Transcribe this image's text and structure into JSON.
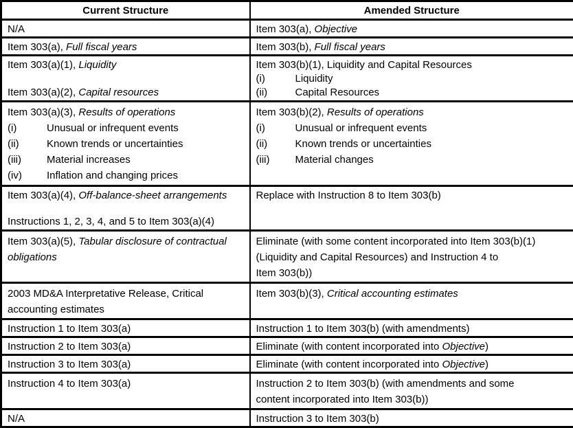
{
  "table": {
    "headers": [
      "Current Structure",
      "Amended Structure"
    ],
    "rows": [
      {
        "current": {
          "lines": [
            {
              "segments": [
                {
                  "text": "N/A",
                  "italic": false
                }
              ]
            }
          ]
        },
        "amended": {
          "lines": [
            {
              "segments": [
                {
                  "text": "Item 303(a), ",
                  "italic": false
                },
                {
                  "text": "Objective",
                  "italic": true
                }
              ]
            }
          ]
        }
      },
      {
        "current": {
          "lines": [
            {
              "segments": [
                {
                  "text": "Item 303(a), ",
                  "italic": false
                },
                {
                  "text": "Full fiscal years",
                  "italic": true
                }
              ]
            }
          ]
        },
        "amended": {
          "lines": [
            {
              "segments": [
                {
                  "text": "Item 303(b), ",
                  "italic": false
                },
                {
                  "text": "Full fiscal years",
                  "italic": true
                }
              ]
            }
          ]
        }
      },
      {
        "current": {
          "lines": [
            {
              "segments": [
                {
                  "text": "Item 303(a)(1), ",
                  "italic": false
                },
                {
                  "text": "Liquidity",
                  "italic": true
                }
              ]
            },
            {
              "blank": true
            },
            {
              "segments": [
                {
                  "text": "Item 303(a)(2), ",
                  "italic": false
                },
                {
                  "text": "Capital resources",
                  "italic": true
                }
              ]
            }
          ]
        },
        "amended": {
          "lines": [
            {
              "segments": [
                {
                  "text": "Item 303(b)(1), Liquidity and Capital Resources",
                  "italic": false
                }
              ]
            },
            {
              "marker": "(i)",
              "segments": [
                {
                  "text": "Liquidity",
                  "italic": false
                }
              ]
            },
            {
              "marker": "(ii)",
              "segments": [
                {
                  "text": "Capital Resources",
                  "italic": false
                }
              ]
            }
          ]
        }
      },
      {
        "current": {
          "lines": [
            {
              "segments": [
                {
                  "text": "Item 303(a)(3), ",
                  "italic": false
                },
                {
                  "text": "Results of operations",
                  "italic": true
                }
              ]
            },
            {
              "marker": "(i)",
              "segments": [
                {
                  "text": "Unusual or infrequent events",
                  "italic": false
                }
              ]
            },
            {
              "marker": "(ii)",
              "segments": [
                {
                  "text": "Known trends or uncertainties",
                  "italic": false
                }
              ]
            },
            {
              "marker": "(iii)",
              "segments": [
                {
                  "text": "Material increases",
                  "italic": false
                }
              ]
            },
            {
              "marker": "(iv)",
              "segments": [
                {
                  "text": "Inflation and changing prices",
                  "italic": false
                }
              ]
            }
          ]
        },
        "amended": {
          "lines": [
            {
              "segments": [
                {
                  "text": "Item 303(b)(2), ",
                  "italic": false
                },
                {
                  "text": "Results of operations",
                  "italic": true
                }
              ]
            },
            {
              "marker": "(i)",
              "segments": [
                {
                  "text": "Unusual or infrequent events",
                  "italic": false
                }
              ]
            },
            {
              "marker": "(ii)",
              "segments": [
                {
                  "text": "Known trends or uncertainties",
                  "italic": false
                }
              ]
            },
            {
              "marker": "(iii)",
              "segments": [
                {
                  "text": "Material changes",
                  "italic": false
                }
              ]
            }
          ]
        }
      },
      {
        "current": {
          "lines": [
            {
              "segments": [
                {
                  "text": "Item 303(a)(4), ",
                  "italic": false
                },
                {
                  "text": "Off-balance-sheet arrangements",
                  "italic": true
                }
              ]
            },
            {
              "blank": true
            },
            {
              "segments": [
                {
                  "text": "Instructions 1, 2, 3, 4, and 5 to Item 303(a)(4)",
                  "italic": false
                }
              ]
            }
          ]
        },
        "amended": {
          "lines": [
            {
              "segments": [
                {
                  "text": "Replace with Instruction 8 to Item 303(b)",
                  "italic": false
                }
              ]
            }
          ]
        }
      },
      {
        "current": {
          "lines": [
            {
              "segments": [
                {
                  "text": "Item 303(a)(5), ",
                  "italic": false
                },
                {
                  "text": "Tabular disclosure of contractual",
                  "italic": true
                }
              ]
            },
            {
              "segments": [
                {
                  "text": "obligations",
                  "italic": true
                }
              ]
            }
          ]
        },
        "amended": {
          "lines": [
            {
              "segments": [
                {
                  "text": "Eliminate (with some content incorporated into Item 303(b)(1)",
                  "italic": false
                }
              ]
            },
            {
              "segments": [
                {
                  "text": "(Liquidity and Capital Resources) and Instruction 4 to",
                  "italic": false
                }
              ]
            },
            {
              "segments": [
                {
                  "text": "Item 303(b))",
                  "italic": false
                }
              ]
            }
          ]
        }
      },
      {
        "current": {
          "lines": [
            {
              "segments": [
                {
                  "text": "2003 MD&A Interpretative Release, Critical",
                  "italic": false
                }
              ]
            },
            {
              "segments": [
                {
                  "text": "accounting estimates",
                  "italic": false
                }
              ]
            }
          ]
        },
        "amended": {
          "lines": [
            {
              "segments": [
                {
                  "text": "Item 303(b)(3), ",
                  "italic": false
                },
                {
                  "text": "Critical accounting estimates",
                  "italic": true
                }
              ]
            }
          ]
        }
      },
      {
        "current": {
          "lines": [
            {
              "segments": [
                {
                  "text": "Instruction 1 to Item 303(a)",
                  "italic": false
                }
              ]
            }
          ]
        },
        "amended": {
          "lines": [
            {
              "segments": [
                {
                  "text": "Instruction 1 to Item 303(b) (with amendments)",
                  "italic": false
                }
              ]
            }
          ]
        }
      },
      {
        "current": {
          "lines": [
            {
              "segments": [
                {
                  "text": "Instruction 2 to Item 303(a)",
                  "italic": false
                }
              ]
            }
          ]
        },
        "amended": {
          "lines": [
            {
              "segments": [
                {
                  "text": "Eliminate (with content incorporated into ",
                  "italic": false
                },
                {
                  "text": "Objective",
                  "italic": true
                },
                {
                  "text": ")",
                  "italic": false
                }
              ]
            }
          ]
        }
      },
      {
        "current": {
          "lines": [
            {
              "segments": [
                {
                  "text": "Instruction 3 to Item 303(a)",
                  "italic": false
                }
              ]
            }
          ]
        },
        "amended": {
          "lines": [
            {
              "segments": [
                {
                  "text": "Eliminate (with content incorporated into ",
                  "italic": false
                },
                {
                  "text": "Objective",
                  "italic": true
                },
                {
                  "text": ")",
                  "italic": false
                }
              ]
            }
          ]
        }
      },
      {
        "current": {
          "lines": [
            {
              "segments": [
                {
                  "text": "Instruction 4 to Item 303(a)",
                  "italic": false
                }
              ]
            }
          ]
        },
        "amended": {
          "lines": [
            {
              "segments": [
                {
                  "text": "Instruction 2 to Item 303(b) (with amendments and some",
                  "italic": false
                }
              ]
            },
            {
              "segments": [
                {
                  "text": "content incorporated into Item 303(b))",
                  "italic": false
                }
              ]
            }
          ]
        }
      },
      {
        "current": {
          "lines": [
            {
              "segments": [
                {
                  "text": "N/A",
                  "italic": false
                }
              ]
            }
          ]
        },
        "amended": {
          "lines": [
            {
              "segments": [
                {
                  "text": "Instruction 3 to Item 303(b)",
                  "italic": false
                }
              ]
            }
          ]
        }
      }
    ]
  }
}
